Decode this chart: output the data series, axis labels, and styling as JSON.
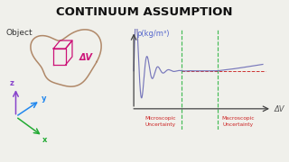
{
  "title": "CONTINUUM ASSUMPTION",
  "title_fontsize": 9.5,
  "title_color": "#111111",
  "bg_color": "#f0f0eb",
  "ylabel": "ρ(kg/m³)",
  "xlabel": "ΔV",
  "ylabel_color": "#5566cc",
  "xlabel_color": "#555555",
  "object_label": "Object",
  "dv_annotation": "ΔV",
  "dv_annotation_color": "#cc1177",
  "dashed_color": "#cc3333",
  "curve_color": "#7777bb",
  "green_dashed": "#44bb55",
  "micro_label": "Microscopic\nUncertainty",
  "macro_label": "Macroscopic\nUncertainty",
  "uncertainty_color": "#cc2222",
  "blob_color": "#b08868",
  "cube_color": "#cc1177",
  "z_color": "#8844cc",
  "y_color": "#2288ee",
  "x_color": "#22aa33"
}
